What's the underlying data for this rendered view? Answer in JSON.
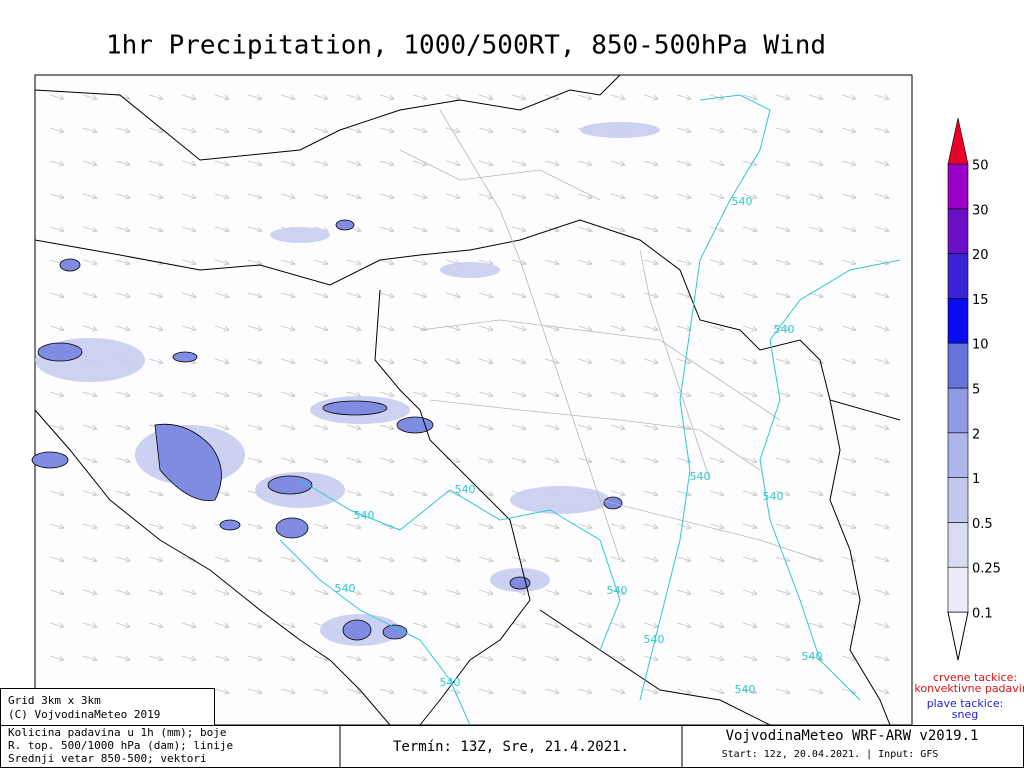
{
  "title": "1hr Precipitation, 1000/500RT, 850-500hPa Wind",
  "colorbar": {
    "levels": [
      0.1,
      0.25,
      0.5,
      1,
      2,
      5,
      10,
      15,
      20,
      30,
      50
    ],
    "colors": [
      "#ececf8",
      "#d8dbf2",
      "#c3c8ee",
      "#aeb5ea",
      "#8f99e4",
      "#6575dc",
      "#0a0af5",
      "#3a22d6",
      "#6a10c8",
      "#9a00c8",
      "#e8002a"
    ]
  },
  "contour_labels": [
    "540",
    "540",
    "540",
    "540",
    "540",
    "540",
    "540",
    "540",
    "540",
    "540",
    "540",
    "540"
  ],
  "notes": {
    "convective": [
      "crvene tackice:",
      "konvektivne padavine"
    ],
    "snow": [
      "plave tackice:",
      "sneg"
    ]
  },
  "footer": {
    "grid": "Grid 3km x 3km",
    "copyright": "(C) VojvodinaMeteo 2019",
    "legend_lines": [
      "Kolicina padavina u 1h (mm); boje",
      "R. top. 500/1000 hPa (dam); linije",
      "Srednji vetar 850-500; vektori"
    ],
    "termin": "Termín: 13Z, Sre, 21.4.2021.",
    "model": "VojvodinaMeteo WRF-ARW v2019.1",
    "start": "Start: 12z, 20.04.2021. | Input: GFS"
  }
}
